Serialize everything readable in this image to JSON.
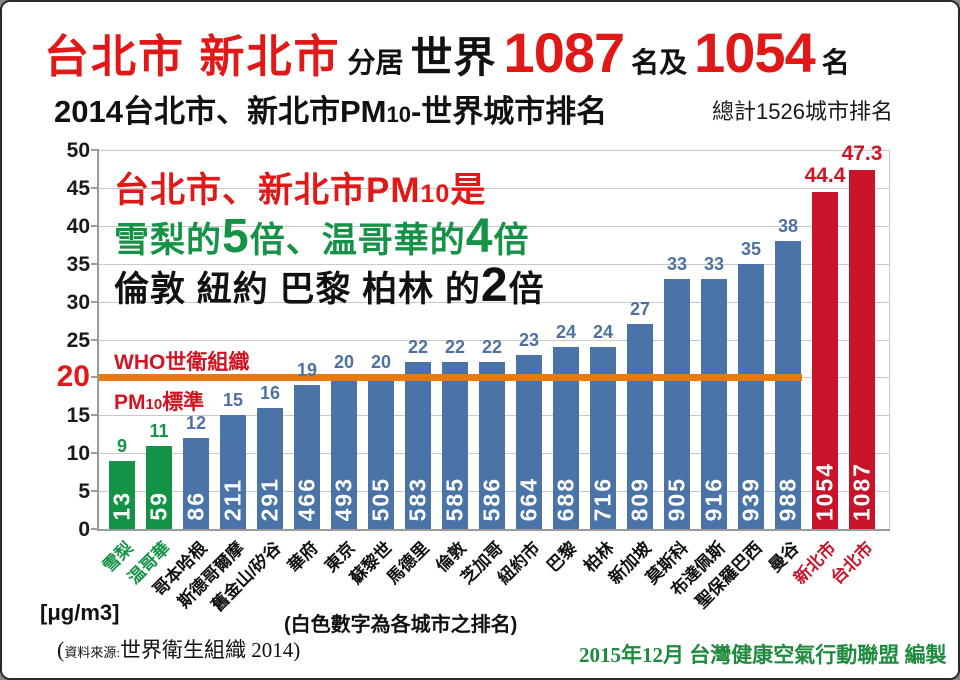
{
  "header": {
    "title_cities": "台北市 新北市",
    "title_mid1": "分居",
    "title_world": "世界",
    "rank1": "1087",
    "title_mid2": "名及",
    "rank2": "1054",
    "title_mid3": "名",
    "subtitle_prefix": "2014台北市、新北市PM",
    "subtitle_sub": "10",
    "subtitle_suffix": "-世界城市排名",
    "total_note": "總計1526城市排名"
  },
  "annotations": {
    "line1_a": "台北市、新北市PM",
    "line1_sub": "10",
    "line1_b": "是",
    "line2_a": "雪梨的",
    "line2_n1": "5",
    "line2_b": "倍、温哥華的",
    "line2_n2": "4",
    "line2_c": "倍",
    "line3_a": "倫敦 紐約 巴黎 柏林 的",
    "line3_n": "2",
    "line3_b": "倍",
    "who_line1": "WHO世衛組織",
    "who_line2_a": "PM",
    "who_line2_sub": "10",
    "who_line2_b": "標準"
  },
  "footer": {
    "unit": "[μg/m3]",
    "white_note": "(白色數字為各城市之排名)",
    "source_paren": "(",
    "source_small": "資料來源:",
    "source_main": "世界衛生組織 2014)",
    "credit": "2015年12月  台灣健康空氣行動聯盟  編製"
  },
  "chart_data": {
    "type": "bar",
    "title": "2014台北市、新北市PM10-世界城市排名",
    "ylabel": "[μg/m3]",
    "ylim": [
      0,
      50
    ],
    "yticks": [
      0,
      5,
      10,
      15,
      20,
      25,
      30,
      35,
      40,
      45,
      50
    ],
    "highlight_tick": 20,
    "who_guideline_value": 20,
    "grid": true,
    "legend": false,
    "categories": [
      "雪梨",
      "温哥華",
      "哥本哈根",
      "斯德哥爾摩",
      "舊金山/矽谷",
      "華府",
      "東京",
      "蘇黎世",
      "馬德里",
      "倫敦",
      "芝加哥",
      "紐約市",
      "巴黎",
      "柏林",
      "新加坡",
      "莫斯科",
      "布達佩斯",
      "聖保羅巴西",
      "曼谷",
      "新北市",
      "台北市"
    ],
    "values": [
      9,
      11,
      12,
      15,
      16,
      19,
      20,
      20,
      22,
      22,
      22,
      23,
      24,
      24,
      27,
      33,
      33,
      35,
      38,
      44.4,
      47.3
    ],
    "ranks": [
      13,
      59,
      86,
      211,
      291,
      466,
      493,
      505,
      583,
      585,
      586,
      664,
      688,
      716,
      809,
      905,
      916,
      939,
      988,
      1054,
      1087
    ],
    "colors": [
      "green",
      "green",
      "blue",
      "blue",
      "blue",
      "blue",
      "blue",
      "blue",
      "blue",
      "blue",
      "blue",
      "blue",
      "blue",
      "blue",
      "blue",
      "blue",
      "blue",
      "blue",
      "blue",
      "red",
      "red"
    ],
    "palette": {
      "green": "#149245",
      "blue": "#4a74a8",
      "red": "#c8132b",
      "orange": "#e8790f",
      "value_blue": "#4e72a0",
      "value_green": "#149245",
      "value_red": "#d01422"
    }
  }
}
